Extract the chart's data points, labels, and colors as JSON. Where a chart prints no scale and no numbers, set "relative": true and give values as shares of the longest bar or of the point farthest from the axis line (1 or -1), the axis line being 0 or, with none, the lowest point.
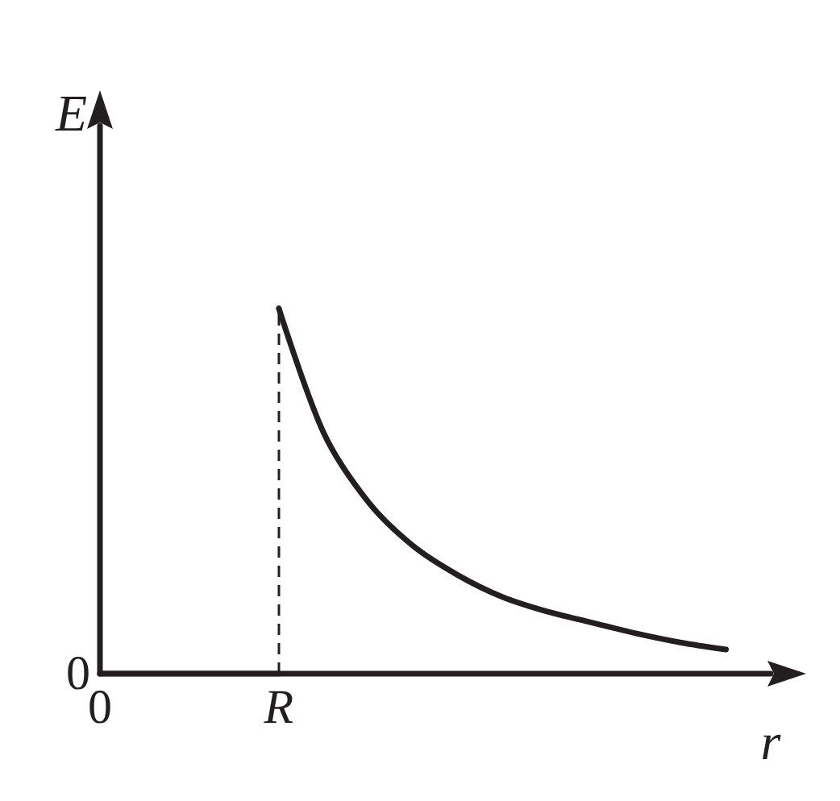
{
  "chart_data": {
    "type": "line",
    "relative": true,
    "xlabel": "r",
    "ylabel": "E",
    "marker": "none",
    "line_style": "solid",
    "categories": [
      "0",
      null,
      null,
      null,
      "R",
      null,
      null,
      null,
      null,
      null,
      null,
      null,
      null,
      null,
      null,
      null
    ],
    "annotations": [
      {
        "text": "0",
        "x": "0",
        "y": 0
      }
    ],
    "ref_lines": [
      {
        "axis": "x",
        "value": "R",
        "line_style": "dashed",
        "color": "#231f20"
      }
    ],
    "series": [
      {
        "color": "#231f20",
        "values": [
          0,
          0,
          0,
          0,
          0,
          null,
          null,
          null,
          null,
          null,
          null,
          null,
          null,
          null,
          null,
          null
        ]
      },
      {
        "color": "#231f20",
        "values": [
          null,
          null,
          null,
          null,
          1,
          0.66,
          0.47,
          0.35,
          0.27,
          0.21,
          0.17,
          0.14,
          0.11,
          0.085,
          0.066,
          null
        ]
      }
    ]
  }
}
